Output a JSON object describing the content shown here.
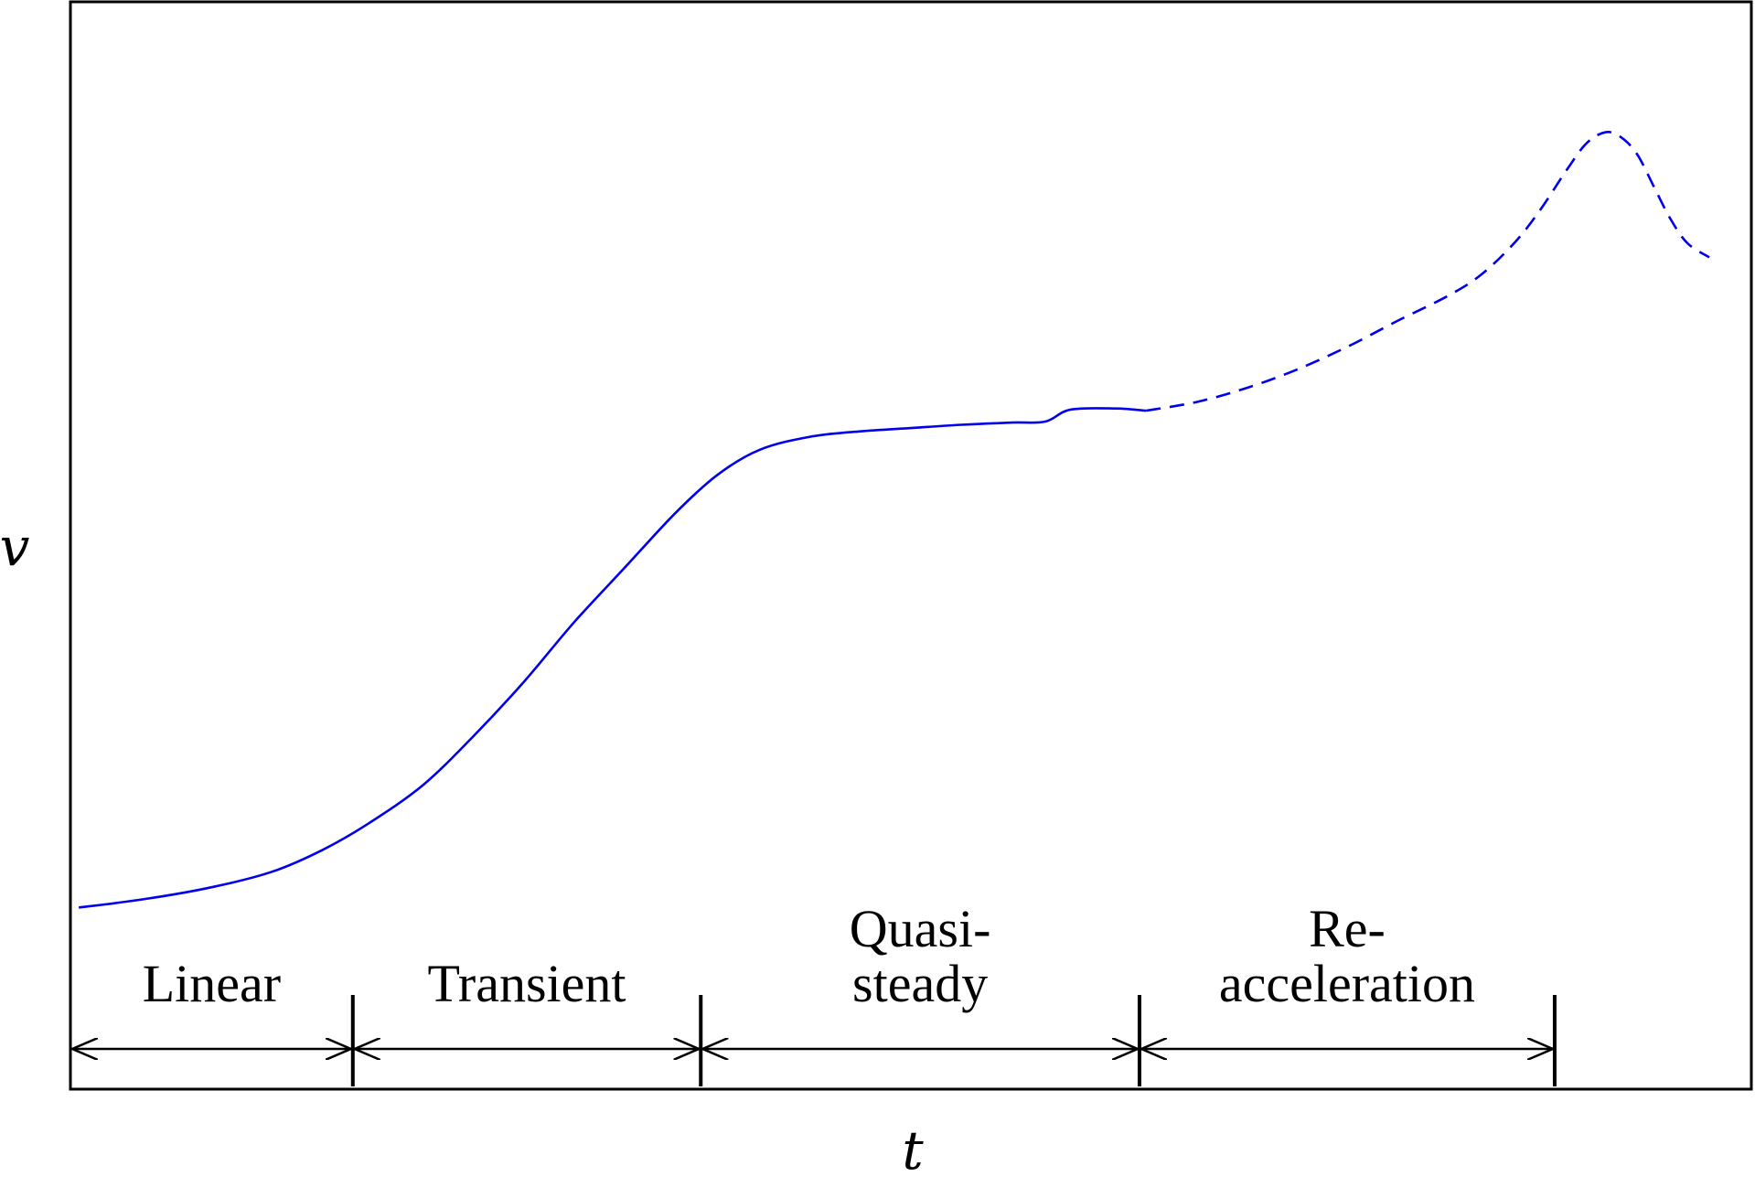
{
  "chart_data": {
    "type": "line",
    "xlabel": "t",
    "ylabel": "v",
    "grid": false,
    "xlim": [
      0,
      1
    ],
    "ylim": [
      0,
      1
    ],
    "series": [
      {
        "style": "solid",
        "color": "#0000ee",
        "points": [
          [
            0.005,
            0.167
          ],
          [
            0.045,
            0.175
          ],
          [
            0.085,
            0.186
          ],
          [
            0.12,
            0.2
          ],
          [
            0.15,
            0.22
          ],
          [
            0.178,
            0.245
          ],
          [
            0.21,
            0.28
          ],
          [
            0.24,
            0.325
          ],
          [
            0.27,
            0.375
          ],
          [
            0.3,
            0.43
          ],
          [
            0.33,
            0.48
          ],
          [
            0.36,
            0.53
          ],
          [
            0.385,
            0.565
          ],
          [
            0.41,
            0.588
          ],
          [
            0.44,
            0.6
          ],
          [
            0.47,
            0.605
          ],
          [
            0.5,
            0.608
          ],
          [
            0.53,
            0.611
          ],
          [
            0.56,
            0.613
          ],
          [
            0.58,
            0.614
          ],
          [
            0.595,
            0.625
          ],
          [
            0.622,
            0.626
          ],
          [
            0.64,
            0.624
          ]
        ]
      },
      {
        "style": "dashed",
        "color": "#0000ee",
        "points": [
          [
            0.64,
            0.624
          ],
          [
            0.67,
            0.632
          ],
          [
            0.7,
            0.645
          ],
          [
            0.73,
            0.662
          ],
          [
            0.76,
            0.683
          ],
          [
            0.79,
            0.707
          ],
          [
            0.82,
            0.73
          ],
          [
            0.84,
            0.75
          ],
          [
            0.86,
            0.78
          ],
          [
            0.875,
            0.81
          ],
          [
            0.89,
            0.845
          ],
          [
            0.902,
            0.87
          ],
          [
            0.913,
            0.88
          ],
          [
            0.922,
            0.876
          ],
          [
            0.932,
            0.86
          ],
          [
            0.942,
            0.83
          ],
          [
            0.952,
            0.8
          ],
          [
            0.962,
            0.778
          ],
          [
            0.975,
            0.765
          ]
        ]
      }
    ],
    "phase_boundaries": [
      0.0,
      0.168,
      0.375,
      0.636,
      0.883
    ],
    "phases": [
      {
        "lines": [
          "Linear"
        ]
      },
      {
        "lines": [
          "Transient"
        ]
      },
      {
        "lines": [
          "Quasi-",
          "steady"
        ]
      },
      {
        "lines": [
          "Re-",
          "acceleration"
        ]
      }
    ]
  }
}
